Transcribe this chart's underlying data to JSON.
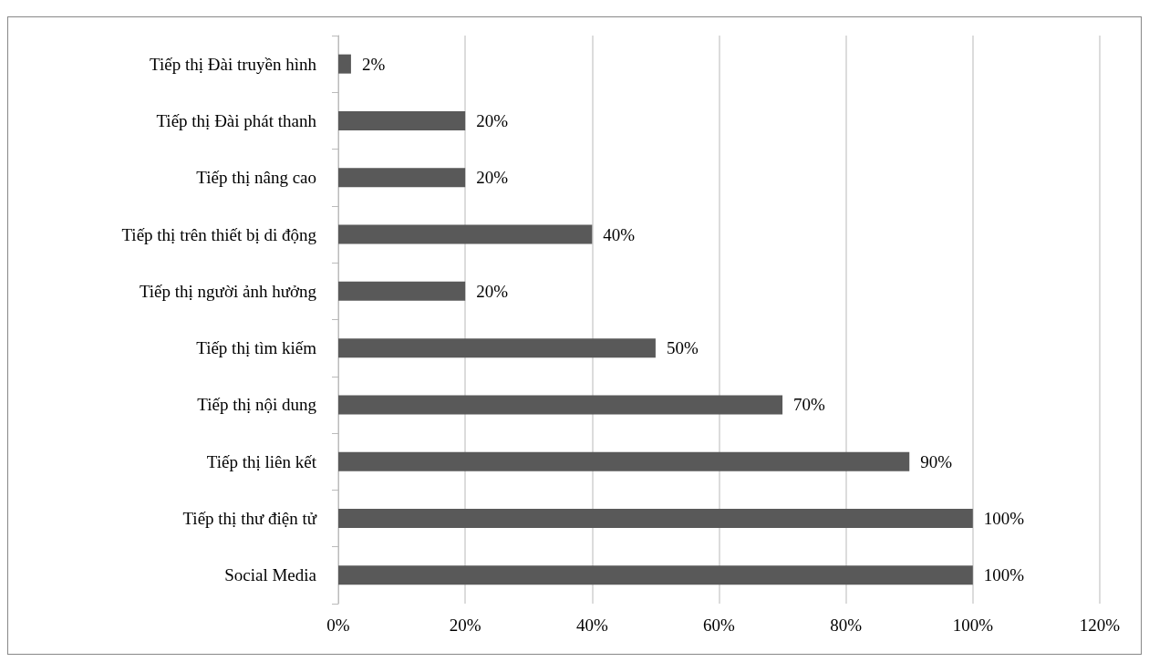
{
  "chart_data": {
    "type": "bar",
    "orientation": "horizontal",
    "categories": [
      "Tiếp thị Đài truyền hình",
      "Tiếp thị Đài phát thanh",
      "Tiếp thị nâng cao",
      "Tiếp thị trên thiết bị di động",
      "Tiếp thị người ảnh hưởng",
      "Tiếp thị tìm kiếm",
      "Tiếp thị nội dung",
      "Tiếp thị liên kết",
      "Tiếp thị thư điện tử",
      "Social Media"
    ],
    "values": [
      2,
      20,
      20,
      40,
      20,
      50,
      70,
      90,
      100,
      100
    ],
    "value_labels": [
      "2%",
      "20%",
      "20%",
      "40%",
      "20%",
      "50%",
      "70%",
      "90%",
      "100%",
      "100%"
    ],
    "color": "#595959",
    "xlim": [
      0,
      120
    ],
    "xticks": [
      {
        "value": 0,
        "label": "0%"
      },
      {
        "value": 20,
        "label": "20%"
      },
      {
        "value": 40,
        "label": "40%"
      },
      {
        "value": 60,
        "label": "60%"
      },
      {
        "value": 80,
        "label": "80%"
      },
      {
        "value": 100,
        "label": "100%"
      },
      {
        "value": 120,
        "label": "120%"
      }
    ],
    "grid": "x"
  }
}
